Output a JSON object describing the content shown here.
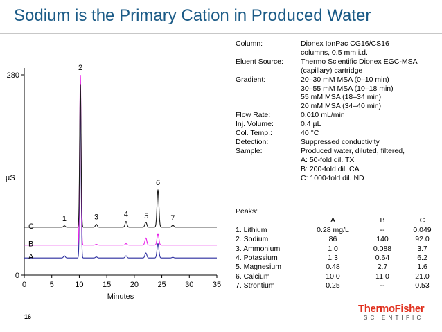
{
  "slide": {
    "title": "Sodium is the Primary Cation in Produced Water",
    "page_number": "16"
  },
  "conditions": [
    {
      "label": "Column:",
      "values": [
        "Dionex IonPac CG16/CS16",
        "columns, 0.5 mm i.d."
      ]
    },
    {
      "label": "Eluent Source:",
      "values": [
        "Thermo Scientific Dionex EGC-MSA",
        "(capillary) cartridge"
      ]
    },
    {
      "label": "Gradient:",
      "values": [
        "20–30 mM MSA (0–10 min)",
        "30–55 mM MSA (10–18 min)",
        "55 mM MSA (18–34 min)",
        "20 mM MSA (34–40 min)"
      ]
    },
    {
      "label": "Flow Rate:",
      "values": [
        "0.010 mL/min"
      ]
    },
    {
      "label": "Inj. Volume:",
      "values": [
        "0.4 µL"
      ]
    },
    {
      "label": "Col. Temp.:",
      "values": [
        "40 °C"
      ]
    },
    {
      "label": "Detection:",
      "values": [
        "Suppressed conductivity"
      ]
    },
    {
      "label": "Sample:",
      "values": [
        "Produced water, diluted, filtered,",
        "A: 50-fold dil. TX",
        "B: 200-fold dil. CA",
        "C: 1000-fold dil. ND"
      ]
    }
  ],
  "peaks_table": {
    "title": "Peaks:",
    "headers": [
      "",
      "A",
      "B",
      "C"
    ],
    "rows": [
      [
        "1. Lithium",
        "0.28 mg/L",
        "--",
        "0.049"
      ],
      [
        "2. Sodium",
        "86",
        "140",
        "92.0"
      ],
      [
        "3. Ammonium",
        "1.0",
        "0.088",
        "3.7"
      ],
      [
        "4. Potassium",
        "1.3",
        "0.64",
        "6.2"
      ],
      [
        "5. Magnesium",
        "0.48",
        "2.7",
        "1.6"
      ],
      [
        "6. Calcium",
        "10.0",
        "11.0",
        "21.0"
      ],
      [
        "7. Strontium",
        "0.25",
        "--",
        "0.53"
      ]
    ]
  },
  "logo": {
    "main": "ThermoFisher",
    "sub": "SCIENTIFIC"
  },
  "chart_data": {
    "type": "line",
    "xlabel": "Minutes",
    "ylabel": "µS",
    "xlim": [
      0,
      35
    ],
    "ylim": [
      0,
      280
    ],
    "xticks": [
      0,
      5,
      10,
      15,
      20,
      25,
      30,
      35
    ],
    "yticks": [
      0,
      280
    ],
    "grid": false,
    "peak_labels": [
      {
        "label": "1",
        "x": 7.3
      },
      {
        "label": "2",
        "x": 10.2
      },
      {
        "label": "3",
        "x": 13.1
      },
      {
        "label": "4",
        "x": 18.5
      },
      {
        "label": "5",
        "x": 22.2
      },
      {
        "label": "6",
        "x": 24.3
      },
      {
        "label": "7",
        "x": 27.0
      }
    ],
    "series": [
      {
        "name": "A",
        "color": "#2b2d9f",
        "baseline": 24,
        "peaks": [
          [
            7.3,
            3
          ],
          [
            10.2,
            218
          ],
          [
            13.1,
            1.5
          ],
          [
            18.5,
            3
          ],
          [
            22.1,
            7
          ],
          [
            24.3,
            20
          ],
          [
            27.0,
            1
          ]
        ]
      },
      {
        "name": "B",
        "color": "#e81ee8",
        "baseline": 42,
        "peaks": [
          [
            10.2,
            238
          ],
          [
            13.1,
            1
          ],
          [
            18.5,
            2
          ],
          [
            22.1,
            10
          ],
          [
            24.3,
            16
          ]
        ]
      },
      {
        "name": "C",
        "color": "#1a1a1a",
        "baseline": 67,
        "peaks": [
          [
            7.3,
            2
          ],
          [
            10.2,
            200
          ],
          [
            13.1,
            4
          ],
          [
            18.5,
            8
          ],
          [
            22.1,
            7
          ],
          [
            24.3,
            52
          ],
          [
            27.0,
            3
          ]
        ]
      }
    ]
  }
}
